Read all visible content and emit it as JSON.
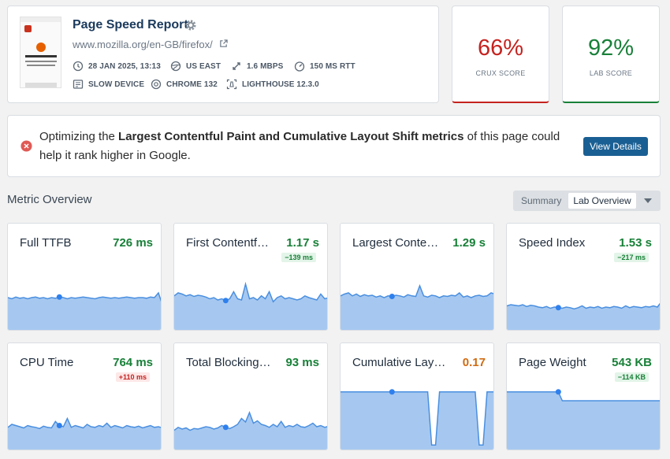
{
  "header": {
    "title": "Page Speed Report",
    "url": "www.mozilla.org/en-GB/firefox/",
    "meta": [
      {
        "icon": "clock-icon",
        "label": "28 JAN 2025, 13:13"
      },
      {
        "icon": "globe-icon",
        "label": "US EAST"
      },
      {
        "icon": "bandwidth-icon",
        "label": "1.6 MBPS"
      },
      {
        "icon": "gauge-icon",
        "label": "150 MS RTT"
      },
      {
        "icon": "device-icon",
        "label": "SLOW DEVICE"
      },
      {
        "icon": "chrome-icon",
        "label": "CHROME 132"
      },
      {
        "icon": "lighthouse-icon",
        "label": "LIGHTHOUSE 12.3.0"
      }
    ]
  },
  "scores": {
    "crux": {
      "value": "66%",
      "label": "CRUX SCORE",
      "color": "#c5221f"
    },
    "lab": {
      "value": "92%",
      "label": "LAB SCORE",
      "color": "#188038"
    }
  },
  "alert": {
    "prefix": "Optimizing the ",
    "bold": "Largest Contentful Paint and Cumulative Layout Shift metrics",
    "suffix": " of this page could help it rank higher in Google.",
    "button": "View Details"
  },
  "overview": {
    "title": "Metric Overview",
    "toggle": {
      "option1": "Summary",
      "option2": "Lab Overview"
    }
  },
  "metrics": [
    {
      "name": "Full TTFB",
      "value": "726 ms",
      "delta": "",
      "status": "green",
      "trend": [
        0.52,
        0.5,
        0.53,
        0.51,
        0.52,
        0.5,
        0.52,
        0.53,
        0.51,
        0.52,
        0.5,
        0.52,
        0.51,
        0.53,
        0.52,
        0.5,
        0.52,
        0.51,
        0.52,
        0.53,
        0.52,
        0.51,
        0.5,
        0.52,
        0.53,
        0.52,
        0.51,
        0.52,
        0.51,
        0.52,
        0.53,
        0.52,
        0.51,
        0.52,
        0.52,
        0.51,
        0.53,
        0.52,
        0.6,
        0.4
      ],
      "marker": 0.33
    },
    {
      "name": "First Contentf…",
      "value": "1.17 s",
      "delta": "−139 ms",
      "status": "green",
      "trend": [
        0.55,
        0.6,
        0.58,
        0.55,
        0.57,
        0.54,
        0.56,
        0.55,
        0.53,
        0.5,
        0.52,
        0.48,
        0.5,
        0.47,
        0.5,
        0.62,
        0.5,
        0.48,
        0.75,
        0.5,
        0.52,
        0.48,
        0.55,
        0.5,
        0.62,
        0.45,
        0.52,
        0.55,
        0.5,
        0.52,
        0.5,
        0.48,
        0.5,
        0.55,
        0.52,
        0.5,
        0.48,
        0.58,
        0.5,
        0.52
      ],
      "marker": 0.33
    },
    {
      "name": "Largest Conte…",
      "value": "1.29 s",
      "delta": "",
      "status": "green",
      "trend": [
        0.55,
        0.58,
        0.6,
        0.55,
        0.58,
        0.54,
        0.57,
        0.55,
        0.56,
        0.53,
        0.55,
        0.52,
        0.55,
        0.54,
        0.56,
        0.55,
        0.53,
        0.57,
        0.55,
        0.54,
        0.72,
        0.55,
        0.53,
        0.56,
        0.55,
        0.52,
        0.55,
        0.54,
        0.56,
        0.55,
        0.6,
        0.53,
        0.55,
        0.52,
        0.55,
        0.56,
        0.54,
        0.55,
        0.6,
        0.58
      ],
      "marker": 0.33
    },
    {
      "name": "Speed Index",
      "value": "1.53 s",
      "delta": "−217 ms",
      "status": "green",
      "trend": [
        0.38,
        0.4,
        0.39,
        0.38,
        0.4,
        0.37,
        0.39,
        0.38,
        0.36,
        0.35,
        0.37,
        0.34,
        0.36,
        0.35,
        0.34,
        0.36,
        0.35,
        0.33,
        0.35,
        0.38,
        0.34,
        0.36,
        0.35,
        0.37,
        0.34,
        0.36,
        0.35,
        0.37,
        0.36,
        0.34,
        0.38,
        0.35,
        0.37,
        0.36,
        0.35,
        0.37,
        0.36,
        0.38,
        0.36,
        0.45
      ],
      "marker": 0.33
    },
    {
      "name": "CPU Time",
      "value": "764 ms",
      "delta": "+110 ms",
      "status": "green",
      "trend": [
        0.35,
        0.4,
        0.38,
        0.36,
        0.34,
        0.38,
        0.36,
        0.35,
        0.33,
        0.37,
        0.35,
        0.34,
        0.45,
        0.38,
        0.36,
        0.5,
        0.35,
        0.38,
        0.36,
        0.34,
        0.4,
        0.36,
        0.35,
        0.38,
        0.36,
        0.42,
        0.35,
        0.38,
        0.36,
        0.34,
        0.38,
        0.36,
        0.35,
        0.37,
        0.34,
        0.36,
        0.38,
        0.35,
        0.36,
        0.34
      ],
      "marker": 0.33
    },
    {
      "name": "Total Blocking…",
      "value": "93 ms",
      "delta": "",
      "status": "green",
      "trend": [
        0.3,
        0.35,
        0.32,
        0.34,
        0.3,
        0.33,
        0.32,
        0.34,
        0.36,
        0.35,
        0.32,
        0.34,
        0.38,
        0.35,
        0.33,
        0.36,
        0.4,
        0.5,
        0.44,
        0.6,
        0.42,
        0.46,
        0.4,
        0.38,
        0.35,
        0.4,
        0.36,
        0.45,
        0.35,
        0.38,
        0.36,
        0.4,
        0.36,
        0.35,
        0.38,
        0.42,
        0.36,
        0.38,
        0.35,
        0.37
      ],
      "marker": 0.33
    },
    {
      "name": "Cumulative Lay…",
      "value": "0.17",
      "delta": "",
      "status": "orange",
      "trend": [
        0.95,
        0.95,
        0.95,
        0.95,
        0.95,
        0.95,
        0.95,
        0.95,
        0.95,
        0.95,
        0.95,
        0.95,
        0.95,
        0.95,
        0.95,
        0.95,
        0.95,
        0.95,
        0.95,
        0.95,
        0.95,
        0.95,
        0.95,
        0.05,
        0.05,
        0.95,
        0.95,
        0.95,
        0.95,
        0.95,
        0.95,
        0.95,
        0.95,
        0.95,
        0.95,
        0.05,
        0.05,
        0.95,
        0.95,
        0.95
      ],
      "marker": 0.33
    },
    {
      "name": "Page Weight",
      "value": "543 KB",
      "delta": "−114 KB",
      "status": "green",
      "trend": [
        0.95,
        0.95,
        0.95,
        0.95,
        0.95,
        0.95,
        0.95,
        0.95,
        0.95,
        0.95,
        0.95,
        0.95,
        0.95,
        0.95,
        0.8,
        0.8,
        0.8,
        0.8,
        0.8,
        0.8,
        0.8,
        0.8,
        0.8,
        0.8,
        0.8,
        0.8,
        0.8,
        0.8,
        0.8,
        0.8,
        0.8,
        0.8,
        0.8,
        0.8,
        0.8,
        0.8,
        0.8,
        0.8,
        0.8,
        0.8
      ],
      "marker": 0.33
    }
  ],
  "colors": {
    "accent": "#1a5f93",
    "fill": "#a6c8f0",
    "line": "#4a8fe0",
    "good": "#188038",
    "bad": "#c5221f",
    "warn": "#d06b12"
  }
}
